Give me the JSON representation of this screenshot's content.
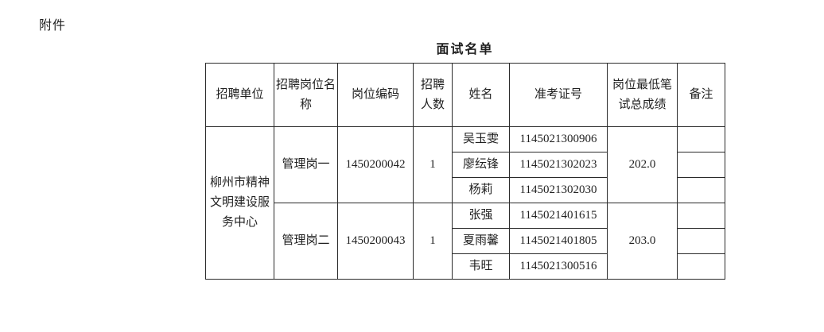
{
  "page": {
    "attachment_label": "附件",
    "title": "面试名单"
  },
  "table": {
    "headers": {
      "recruiting_unit": "招聘单位",
      "position_name": "招聘岗位名称",
      "position_code": "岗位编码",
      "recruit_count": "招聘人数",
      "candidate_name": "姓名",
      "exam_number": "准考证号",
      "min_written_score": "岗位最低笔试总成绩",
      "remarks": "备注"
    },
    "unit": "柳州市精神文明建设服务中心",
    "groups": [
      {
        "position_name": "管理岗一",
        "position_code": "1450200042",
        "recruit_count": "1",
        "min_score": "202.0",
        "candidates": [
          {
            "name": "吴玉雯",
            "exam_no": "1145021300906",
            "remark": ""
          },
          {
            "name": "廖纭锋",
            "exam_no": "1145021302023",
            "remark": ""
          },
          {
            "name": "杨莉",
            "exam_no": "1145021302030",
            "remark": ""
          }
        ]
      },
      {
        "position_name": "管理岗二",
        "position_code": "1450200043",
        "recruit_count": "1",
        "min_score": "203.0",
        "candidates": [
          {
            "name": "张强",
            "exam_no": "1145021401615",
            "remark": ""
          },
          {
            "name": "夏雨馨",
            "exam_no": "1145021401805",
            "remark": ""
          },
          {
            "name": "韦旺",
            "exam_no": "1145021300516",
            "remark": ""
          }
        ]
      }
    ]
  }
}
